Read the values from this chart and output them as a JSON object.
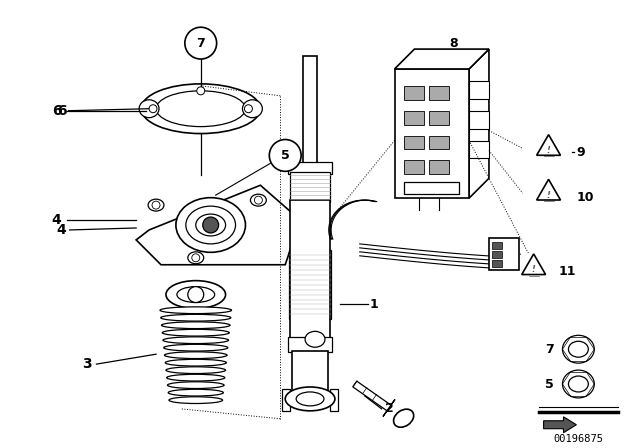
{
  "bg_color": "#ffffff",
  "fig_width": 6.4,
  "fig_height": 4.48,
  "dpi": 100,
  "watermark": "00196875"
}
